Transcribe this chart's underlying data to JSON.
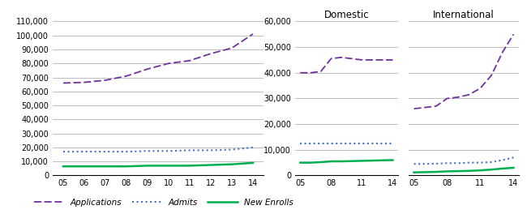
{
  "years_combined": [
    5,
    6,
    7,
    8,
    9,
    10,
    11,
    12,
    13,
    14
  ],
  "combined_applications": [
    66000,
    66500,
    68000,
    71000,
    76000,
    80000,
    82000,
    87000,
    91000,
    101000
  ],
  "combined_admits": [
    17000,
    17000,
    17000,
    17000,
    17500,
    17500,
    18000,
    18000,
    18500,
    20000
  ],
  "combined_enrolls": [
    6500,
    6500,
    6500,
    6500,
    7000,
    7000,
    7000,
    7500,
    8000,
    9000
  ],
  "years_domestic": [
    5,
    6,
    7,
    8,
    9,
    10,
    11,
    12,
    13,
    14
  ],
  "domestic_applications": [
    40000,
    40000,
    40500,
    45500,
    46000,
    45500,
    45000,
    45000,
    45000,
    45000
  ],
  "domestic_admits": [
    12500,
    12500,
    12500,
    12500,
    12500,
    12500,
    12500,
    12500,
    12500,
    12500
  ],
  "domestic_enrolls": [
    5000,
    5000,
    5200,
    5500,
    5500,
    5600,
    5700,
    5800,
    5900,
    6000
  ],
  "years_international": [
    5,
    6,
    7,
    8,
    9,
    10,
    11,
    12,
    13,
    14
  ],
  "intl_applications": [
    26000,
    26500,
    27000,
    30000,
    30500,
    31500,
    34000,
    39000,
    48000,
    55000
  ],
  "intl_admits": [
    4500,
    4500,
    4600,
    4800,
    4800,
    5000,
    5000,
    5200,
    6000,
    7000
  ],
  "intl_enrolls": [
    1200,
    1300,
    1400,
    1600,
    1700,
    1800,
    2000,
    2300,
    2700,
    3000
  ],
  "app_color": "#7030A0",
  "admit_color": "#4472C4",
  "enroll_color": "#00B050",
  "legend_fontsize": 7.5,
  "tick_fontsize": 7,
  "label_fontsize": 8.5,
  "grid_color": "#BEBEBE",
  "left_xticks": [
    5,
    6,
    7,
    8,
    9,
    10,
    11,
    12,
    13,
    14
  ],
  "left_xlabels": [
    "05",
    "06",
    "07",
    "08",
    "09",
    "10",
    "11",
    "12",
    "13",
    "14"
  ],
  "left_yticks": [
    0,
    10000,
    20000,
    30000,
    40000,
    50000,
    60000,
    70000,
    80000,
    90000,
    100000,
    110000
  ],
  "right_xticks_dom": [
    5,
    8,
    11,
    14
  ],
  "right_xlabels_dom": [
    "05",
    "08",
    "11",
    "14"
  ],
  "right_xticks_int": [
    5,
    8,
    11,
    14
  ],
  "right_xlabels_int": [
    "05",
    "08",
    "11",
    "14"
  ],
  "right_yticks": [
    0,
    10000,
    20000,
    30000,
    40000,
    50000,
    60000
  ],
  "dom_title": "Domestic",
  "int_title": "International",
  "legend_apps": "Applications",
  "legend_admits": "Admits",
  "legend_enrolls": "New Enrolls"
}
